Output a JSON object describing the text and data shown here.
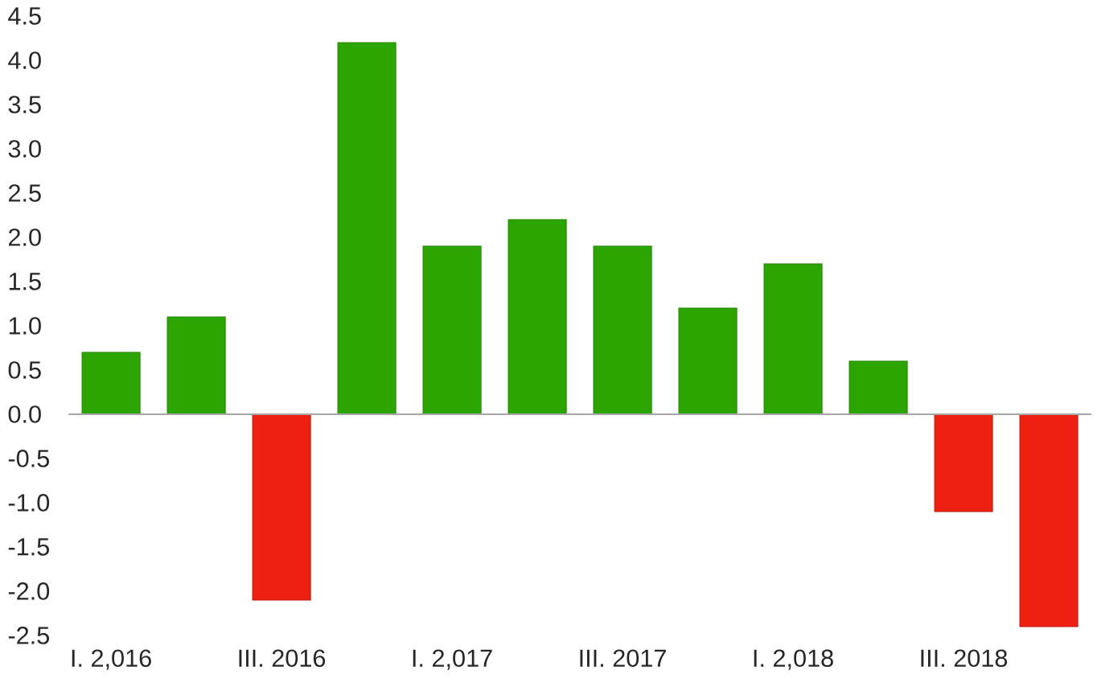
{
  "chart_data": {
    "type": "bar",
    "categories": [
      "I. 2,016",
      null,
      "III. 2016",
      null,
      "I. 2,017",
      null,
      "III. 2017",
      null,
      "I. 2,018",
      null,
      "III. 2018",
      null
    ],
    "values": [
      0.7,
      1.1,
      -2.1,
      4.2,
      1.9,
      2.2,
      1.9,
      1.2,
      1.7,
      0.6,
      -1.1,
      -2.4
    ],
    "colors": [
      "#2ca500",
      "#2ca500",
      "#ee2012",
      "#2ca500",
      "#2ca500",
      "#2ca500",
      "#2ca500",
      "#2ca500",
      "#2ca500",
      "#2ca500",
      "#ee2012",
      "#ee2012"
    ],
    "ylim": [
      -2.5,
      4.5
    ],
    "yticks": [
      -2.5,
      {
        "value": -2,
        "label": "-2.0"
      },
      -1.5,
      {
        "value": -1,
        "label": "-1.0"
      },
      -0.5,
      {
        "value": 0,
        "label": "0.0"
      },
      0.5,
      {
        "value": 1,
        "label": "1.0"
      },
      1.5,
      {
        "value": 2,
        "label": "2.0"
      },
      2.5,
      {
        "value": 3,
        "label": "3.0"
      },
      3.5,
      {
        "value": 4,
        "label": "4.0"
      },
      4.5
    ]
  }
}
